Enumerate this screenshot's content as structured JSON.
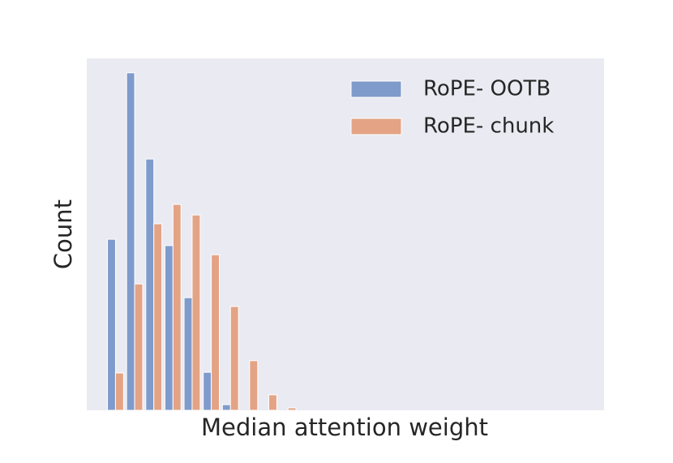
{
  "chart_data": {
    "type": "bar",
    "xlabel": "Median attention weight",
    "ylabel": "Count",
    "categories": [
      null,
      null,
      null,
      null,
      null,
      null,
      null,
      null,
      null,
      null,
      null,
      null,
      null,
      null,
      null,
      null,
      null,
      null,
      null,
      null,
      null,
      null,
      null,
      null,
      null,
      null,
      null
    ],
    "series": [
      {
        "name": "RoPE- OOTB",
        "color": "#7f9bcb",
        "values": [
          0,
          48.6,
          95.9,
          71.4,
          46.8,
          32.0,
          10.8,
          1.6,
          0,
          0,
          0,
          0,
          0,
          0,
          0,
          0,
          0,
          0,
          0,
          0,
          0,
          0,
          0,
          0,
          0,
          0,
          0
        ]
      },
      {
        "name": "RoPE- chunk",
        "color": "#e3a384",
        "values": [
          0,
          10.6,
          35.9,
          53.0,
          58.5,
          55.5,
          44.2,
          29.5,
          14.1,
          4.4,
          0.7,
          0,
          0,
          0,
          0,
          0,
          0,
          0,
          0,
          0,
          0,
          0,
          0,
          0,
          0,
          0,
          0
        ]
      }
    ],
    "ylim": [
      0,
      100
    ],
    "legend": "upper right",
    "background": "#eaeaf2"
  }
}
